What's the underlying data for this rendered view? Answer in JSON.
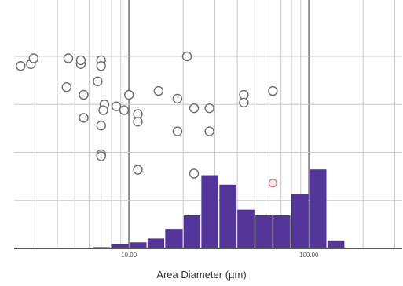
{
  "chart_data": {
    "type": "bar",
    "xlabel": "Area Diameter (µm)",
    "x_scale": "log",
    "xlim": [
      2.3,
      330
    ],
    "ylim": [
      0,
      100
    ],
    "grid": true,
    "x_ticks": [
      {
        "value": 10,
        "label": "10.00"
      },
      {
        "value": 100,
        "label": "100.00"
      }
    ],
    "bins": [
      {
        "from": 6.3,
        "to": 7.9,
        "value": 0.5
      },
      {
        "from": 7.9,
        "to": 10.0,
        "value": 2
      },
      {
        "from": 10.0,
        "to": 12.6,
        "value": 3
      },
      {
        "from": 12.6,
        "to": 15.8,
        "value": 5
      },
      {
        "from": 15.8,
        "to": 20.0,
        "value": 10
      },
      {
        "from": 20.0,
        "to": 25.1,
        "value": 17
      },
      {
        "from": 25.1,
        "to": 31.6,
        "value": 38
      },
      {
        "from": 31.6,
        "to": 39.8,
        "value": 33
      },
      {
        "from": 39.8,
        "to": 50.1,
        "value": 20
      },
      {
        "from": 50.1,
        "to": 63.1,
        "value": 17
      },
      {
        "from": 63.1,
        "to": 79.4,
        "value": 17
      },
      {
        "from": 79.4,
        "to": 100.0,
        "value": 28
      },
      {
        "from": 100.0,
        "to": 125.9,
        "value": 41
      },
      {
        "from": 125.9,
        "to": 158.5,
        "value": 4
      }
    ],
    "scatter": [
      {
        "x": 2.5,
        "y": 95
      },
      {
        "x": 2.85,
        "y": 96
      },
      {
        "x": 2.95,
        "y": 99
      },
      {
        "x": 4.6,
        "y": 99
      },
      {
        "x": 5.4,
        "y": 96
      },
      {
        "x": 5.4,
        "y": 98
      },
      {
        "x": 7.0,
        "y": 98
      },
      {
        "x": 7.0,
        "y": 95
      },
      {
        "x": 4.5,
        "y": 84
      },
      {
        "x": 5.6,
        "y": 80
      },
      {
        "x": 6.7,
        "y": 87
      },
      {
        "x": 7.3,
        "y": 75
      },
      {
        "x": 7.2,
        "y": 72
      },
      {
        "x": 8.5,
        "y": 74
      },
      {
        "x": 5.6,
        "y": 68
      },
      {
        "x": 7.0,
        "y": 64
      },
      {
        "x": 7.0,
        "y": 49
      },
      {
        "x": 7.0,
        "y": 48
      },
      {
        "x": 10.0,
        "y": 80
      },
      {
        "x": 9.4,
        "y": 72
      },
      {
        "x": 11.2,
        "y": 70
      },
      {
        "x": 11.2,
        "y": 66
      },
      {
        "x": 14.6,
        "y": 82
      },
      {
        "x": 18.6,
        "y": 78
      },
      {
        "x": 23.0,
        "y": 73
      },
      {
        "x": 28.0,
        "y": 73
      },
      {
        "x": 18.6,
        "y": 61
      },
      {
        "x": 28.0,
        "y": 61
      },
      {
        "x": 11.2,
        "y": 41
      },
      {
        "x": 23.0,
        "y": 39
      },
      {
        "x": 43.5,
        "y": 80
      },
      {
        "x": 43.5,
        "y": 76
      },
      {
        "x": 63.0,
        "y": 82
      },
      {
        "x": 21.0,
        "y": 100
      }
    ],
    "marker": {
      "x": 63.0,
      "y": 34
    }
  },
  "colors": {
    "bar": "#54369a",
    "bar_stroke": "#3c2480",
    "grid": "#c8c8c8",
    "axis": "#555555",
    "circle": "#6a6a6a",
    "marker_fill": "#f2e9e4",
    "marker_stroke": "#c46f74"
  }
}
